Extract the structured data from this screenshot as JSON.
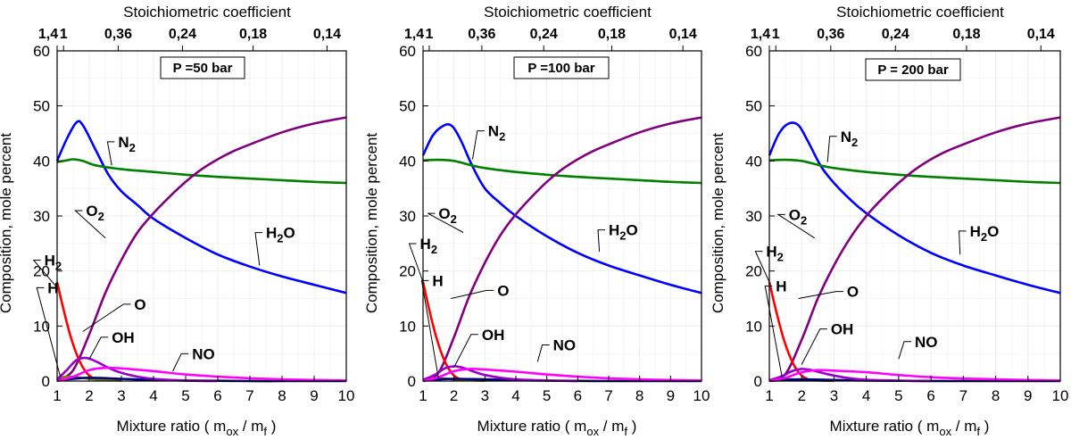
{
  "chart_data": [
    {
      "type": "line",
      "pressure_label": "P =50 bar",
      "xlabel": "Mixture ratio ( m",
      "xlabel_sub1": "ox",
      "xlabel_mid": " / m",
      "xlabel_sub2": "f",
      "xlabel_end": " )",
      "ylabel": "Composition, mole percent",
      "top_xlabel": "Stoichiometric coefficient",
      "top_ticks": [
        "1,4",
        "1",
        "0,36",
        "0,24",
        "0,18",
        "0,14"
      ],
      "xlim": [
        1,
        10
      ],
      "ylim": [
        0,
        60
      ],
      "xticks": [
        1,
        2,
        3,
        4,
        5,
        6,
        7,
        8,
        9,
        10
      ],
      "yticks": [
        0,
        10,
        20,
        30,
        40,
        50,
        60
      ],
      "grid": true,
      "series": [
        {
          "name": "H2O",
          "color": "#0000ff",
          "x": [
            1,
            1.3,
            1.6,
            1.8,
            2.2,
            2.6,
            3,
            3.5,
            4,
            5,
            6,
            7,
            8,
            9,
            10
          ],
          "y": [
            40,
            44,
            47,
            46.5,
            42,
            37.5,
            34.5,
            32,
            29.5,
            26,
            23,
            20.8,
            19,
            17.5,
            16
          ]
        },
        {
          "name": "N2",
          "color": "#008000",
          "x": [
            1,
            1.3,
            1.5,
            1.8,
            2.2,
            3,
            4,
            5,
            6,
            7,
            8,
            9,
            10
          ],
          "y": [
            39.8,
            40.1,
            40.3,
            40,
            39.2,
            38.5,
            38,
            37.5,
            37.1,
            36.8,
            36.5,
            36.2,
            36
          ]
        },
        {
          "name": "O2",
          "color": "#800080",
          "x": [
            1,
            1.5,
            2,
            2.5,
            3,
            3.5,
            4,
            4.5,
            5,
            5.5,
            6,
            6.5,
            7,
            8,
            9,
            10
          ],
          "y": [
            0,
            2,
            8.5,
            16,
            22,
            27,
            30.5,
            33.5,
            36.2,
            38.5,
            40.3,
            41.8,
            43,
            45.2,
            46.8,
            47.9
          ]
        },
        {
          "name": "H2",
          "color": "#ff0000",
          "x": [
            1,
            1.2,
            1.4,
            1.6,
            1.8,
            2,
            2.2
          ],
          "y": [
            18,
            13,
            8.5,
            5,
            2.5,
            1,
            0.3
          ]
        },
        {
          "name": "H",
          "color": "#808000",
          "x": [
            1,
            1.3,
            1.6,
            2,
            2.5,
            3
          ],
          "y": [
            0.5,
            0.8,
            0.7,
            0.4,
            0.2,
            0.1
          ]
        },
        {
          "name": "O",
          "color": "#000080",
          "x": [
            1,
            1.5,
            2,
            3,
            4,
            5,
            6,
            7,
            8,
            9,
            10
          ],
          "y": [
            0.1,
            0.4,
            0.6,
            0.4,
            0.2,
            0.1,
            0.05,
            0,
            0,
            0,
            0
          ]
        },
        {
          "name": "OH",
          "color": "#9900cc",
          "x": [
            1,
            1.3,
            1.6,
            1.9,
            2.2,
            2.6,
            3,
            3.5,
            4,
            5,
            6
          ],
          "y": [
            0.3,
            2,
            3.8,
            4.2,
            3.6,
            2.4,
            1.5,
            0.8,
            0.4,
            0.1,
            0
          ]
        },
        {
          "name": "NO",
          "color": "#ff00ff",
          "x": [
            1,
            1.5,
            2,
            2.5,
            3,
            4,
            5,
            6,
            7,
            8,
            9,
            10
          ],
          "y": [
            0,
            0.8,
            2,
            2.4,
            2.3,
            1.8,
            1.2,
            0.8,
            0.5,
            0.3,
            0.2,
            0.1
          ]
        }
      ],
      "annotations": [
        {
          "text": "N",
          "sub": "2",
          "series": "N2"
        },
        {
          "text": "H",
          "sub": "2",
          "post": "O",
          "series": "H2O"
        },
        {
          "text": "O",
          "sub": "2",
          "series": "O2"
        },
        {
          "text": "H",
          "sub": "2",
          "series": "H2"
        },
        {
          "text": "H",
          "sub": "",
          "series": "H"
        },
        {
          "text": "O",
          "sub": "",
          "series": "O"
        },
        {
          "text": "OH",
          "sub": "",
          "series": "OH"
        },
        {
          "text": "NO",
          "sub": "",
          "series": "NO"
        }
      ]
    },
    {
      "type": "line",
      "pressure_label": "P =100 bar",
      "xlabel": "Mixture ratio ( m",
      "xlabel_sub1": "ox",
      "xlabel_mid": " / m",
      "xlabel_sub2": "f",
      "xlabel_end": " )",
      "ylabel": "Composition, mole percent",
      "top_xlabel": "Stoichiometric coefficient",
      "top_ticks": [
        "1,4",
        "1",
        "0,36",
        "0,24",
        "0,18",
        "0,14"
      ],
      "xlim": [
        1,
        10
      ],
      "ylim": [
        0,
        60
      ],
      "xticks": [
        1,
        2,
        3,
        4,
        5,
        6,
        7,
        8,
        9,
        10
      ],
      "yticks": [
        0,
        10,
        20,
        30,
        40,
        50,
        60
      ],
      "grid": true,
      "series": [
        {
          "name": "H2O",
          "color": "#0000ff",
          "x": [
            1,
            1.3,
            1.6,
            1.9,
            2.2,
            2.6,
            3,
            3.5,
            4,
            5,
            6,
            7,
            8,
            9,
            10
          ],
          "y": [
            41,
            44.5,
            46.2,
            46.5,
            44,
            39,
            35,
            32.3,
            30,
            26.3,
            23.3,
            21,
            19.2,
            17.5,
            16
          ]
        },
        {
          "name": "N2",
          "color": "#008000",
          "x": [
            1,
            1.5,
            2,
            2.5,
            3,
            4,
            5,
            6,
            7,
            8,
            9,
            10
          ],
          "y": [
            40.1,
            40.2,
            40,
            39.3,
            38.7,
            38,
            37.5,
            37.1,
            36.8,
            36.5,
            36.2,
            36
          ]
        },
        {
          "name": "O2",
          "color": "#800080",
          "x": [
            1,
            1.5,
            2,
            2.5,
            3,
            3.5,
            4,
            4.5,
            5,
            5.5,
            6,
            6.5,
            7,
            8,
            9,
            10
          ],
          "y": [
            0,
            1.5,
            8,
            15.5,
            21.5,
            26.5,
            30.3,
            33.4,
            36.2,
            38.5,
            40.3,
            41.8,
            43,
            45.2,
            46.8,
            47.9
          ]
        },
        {
          "name": "H2",
          "color": "#ff0000",
          "x": [
            1,
            1.2,
            1.4,
            1.6,
            1.8,
            2,
            2.2
          ],
          "y": [
            18,
            13,
            8.5,
            5,
            2.5,
            1,
            0.3
          ]
        },
        {
          "name": "H",
          "color": "#808000",
          "x": [
            1,
            1.3,
            1.6,
            2,
            2.5,
            3
          ],
          "y": [
            0.3,
            0.5,
            0.5,
            0.3,
            0.15,
            0.05
          ]
        },
        {
          "name": "O",
          "color": "#000080",
          "x": [
            1,
            1.5,
            2,
            3,
            4,
            5,
            6,
            7,
            8,
            9,
            10
          ],
          "y": [
            0.05,
            0.3,
            0.4,
            0.3,
            0.15,
            0.08,
            0.04,
            0,
            0,
            0,
            0
          ]
        },
        {
          "name": "OH",
          "color": "#9900cc",
          "x": [
            1,
            1.4,
            1.7,
            2,
            2.3,
            2.7,
            3,
            3.5,
            4,
            5,
            6
          ],
          "y": [
            0.2,
            1.2,
            2.3,
            2.7,
            2.4,
            1.6,
            1.1,
            0.6,
            0.3,
            0.1,
            0
          ]
        },
        {
          "name": "NO",
          "color": "#ff00ff",
          "x": [
            1,
            1.5,
            2,
            2.5,
            3,
            4,
            5,
            6,
            7,
            8,
            9,
            10
          ],
          "y": [
            0,
            0.7,
            1.8,
            2.2,
            2.1,
            1.7,
            1.2,
            0.8,
            0.5,
            0.3,
            0.2,
            0.1
          ]
        }
      ],
      "annotations": [
        {
          "text": "N",
          "sub": "2",
          "series": "N2"
        },
        {
          "text": "H",
          "sub": "2",
          "post": "O",
          "series": "H2O"
        },
        {
          "text": "O",
          "sub": "2",
          "series": "O2"
        },
        {
          "text": "H",
          "sub": "2",
          "series": "H2"
        },
        {
          "text": "H",
          "sub": "",
          "series": "H"
        },
        {
          "text": "O",
          "sub": "",
          "series": "O"
        },
        {
          "text": "OH",
          "sub": "",
          "series": "OH"
        },
        {
          "text": "NO",
          "sub": "",
          "series": "NO"
        }
      ]
    },
    {
      "type": "line",
      "pressure_label": "P = 200 bar",
      "xlabel": "Mixture ratio ( m",
      "xlabel_sub1": "ox",
      "xlabel_mid": " / m",
      "xlabel_sub2": "f",
      "xlabel_end": " )",
      "ylabel": "Composition, mole percent",
      "top_xlabel": "Stoichiometric coefficient",
      "top_ticks": [
        "1,4",
        "1",
        "0,36",
        "0,24",
        "0,18",
        "0,14"
      ],
      "xlim": [
        1,
        10
      ],
      "ylim": [
        0,
        60
      ],
      "xticks": [
        1,
        2,
        3,
        4,
        5,
        6,
        7,
        8,
        9,
        10
      ],
      "yticks": [
        0,
        10,
        20,
        30,
        40,
        50,
        60
      ],
      "grid": true,
      "series": [
        {
          "name": "H2O",
          "color": "#0000ff",
          "x": [
            1,
            1.3,
            1.6,
            1.9,
            2.2,
            2.6,
            3,
            3.5,
            4,
            5,
            6,
            7,
            8,
            9,
            10
          ],
          "y": [
            41,
            45,
            46.8,
            46.5,
            43.5,
            39,
            36,
            33,
            30.5,
            26.5,
            23.3,
            21,
            19.2,
            17.5,
            16
          ]
        },
        {
          "name": "N2",
          "color": "#008000",
          "x": [
            1,
            1.5,
            2,
            2.5,
            3,
            4,
            5,
            6,
            7,
            8,
            9,
            10
          ],
          "y": [
            40.1,
            40.2,
            40,
            39.3,
            38.7,
            38,
            37.5,
            37.1,
            36.8,
            36.5,
            36.2,
            36
          ]
        },
        {
          "name": "O2",
          "color": "#800080",
          "x": [
            1,
            1.5,
            2,
            2.5,
            3,
            3.5,
            4,
            4.5,
            5,
            5.5,
            6,
            6.5,
            7,
            8,
            9,
            10
          ],
          "y": [
            0,
            1.3,
            7.5,
            15,
            21,
            26,
            30,
            33.2,
            36,
            38.4,
            40.3,
            41.8,
            43,
            45.2,
            46.8,
            47.9
          ]
        },
        {
          "name": "H2",
          "color": "#ff0000",
          "x": [
            1,
            1.2,
            1.4,
            1.6,
            1.8,
            2,
            2.2
          ],
          "y": [
            18,
            13,
            8.5,
            5,
            2.5,
            1,
            0.3
          ]
        },
        {
          "name": "H",
          "color": "#808000",
          "x": [
            1,
            1.3,
            1.6,
            2,
            2.5,
            3
          ],
          "y": [
            0.2,
            0.35,
            0.35,
            0.2,
            0.1,
            0.03
          ]
        },
        {
          "name": "O",
          "color": "#000080",
          "x": [
            1,
            1.5,
            2,
            3,
            4,
            5,
            6,
            7,
            8,
            9,
            10
          ],
          "y": [
            0.03,
            0.2,
            0.3,
            0.2,
            0.1,
            0.05,
            0.02,
            0,
            0,
            0,
            0
          ]
        },
        {
          "name": "OH",
          "color": "#9900cc",
          "x": [
            1,
            1.4,
            1.7,
            2,
            2.3,
            2.7,
            3,
            3.5,
            4,
            5,
            6
          ],
          "y": [
            0.15,
            0.9,
            1.8,
            2.2,
            2,
            1.4,
            1,
            0.5,
            0.25,
            0.08,
            0
          ]
        },
        {
          "name": "NO",
          "color": "#ff00ff",
          "x": [
            1,
            1.5,
            2,
            2.5,
            3,
            4,
            5,
            6,
            7,
            8,
            9,
            10
          ],
          "y": [
            0,
            0.6,
            1.6,
            2,
            1.9,
            1.6,
            1.1,
            0.7,
            0.45,
            0.3,
            0.2,
            0.1
          ]
        }
      ],
      "annotations": [
        {
          "text": "N",
          "sub": "2",
          "series": "N2"
        },
        {
          "text": "H",
          "sub": "2",
          "post": "O",
          "series": "H2O"
        },
        {
          "text": "O",
          "sub": "2",
          "series": "O2"
        },
        {
          "text": "H",
          "sub": "2",
          "series": "H2"
        },
        {
          "text": "H",
          "sub": "",
          "series": "H"
        },
        {
          "text": "O",
          "sub": "",
          "series": "O"
        },
        {
          "text": "OH",
          "sub": "",
          "series": "OH"
        },
        {
          "text": "NO",
          "sub": "",
          "series": "NO"
        }
      ]
    }
  ]
}
